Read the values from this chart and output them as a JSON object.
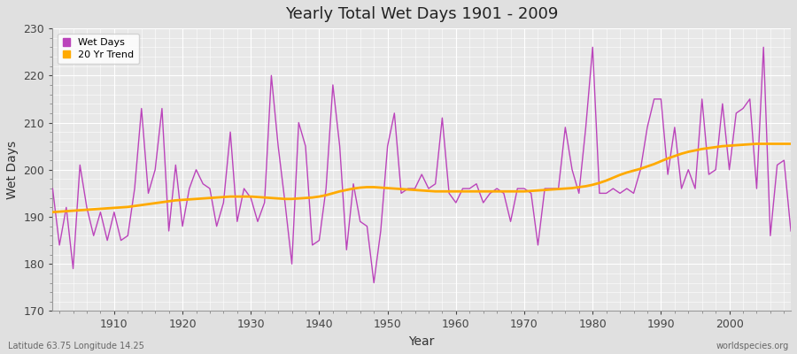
{
  "title": "Yearly Total Wet Days 1901 - 2009",
  "xlabel": "Year",
  "ylabel": "Wet Days",
  "subtitle": "Latitude 63.75 Longitude 14.25",
  "watermark": "worldspecies.org",
  "ylim": [
    170,
    230
  ],
  "xlim": [
    1901,
    2009
  ],
  "yticks": [
    170,
    180,
    190,
    200,
    210,
    220,
    230
  ],
  "wet_days_color": "#bb44bb",
  "trend_color": "#ffaa00",
  "fig_bg_color": "#e0e0e0",
  "plot_bg_color": "#e8e8e8",
  "years": [
    1901,
    1902,
    1903,
    1904,
    1905,
    1906,
    1907,
    1908,
    1909,
    1910,
    1911,
    1912,
    1913,
    1914,
    1915,
    1916,
    1917,
    1918,
    1919,
    1920,
    1921,
    1922,
    1923,
    1924,
    1925,
    1926,
    1927,
    1928,
    1929,
    1930,
    1931,
    1932,
    1933,
    1934,
    1935,
    1936,
    1937,
    1938,
    1939,
    1940,
    1941,
    1942,
    1943,
    1944,
    1945,
    1946,
    1947,
    1948,
    1949,
    1950,
    1951,
    1952,
    1953,
    1954,
    1955,
    1956,
    1957,
    1958,
    1959,
    1960,
    1961,
    1962,
    1963,
    1964,
    1965,
    1966,
    1967,
    1968,
    1969,
    1970,
    1971,
    1972,
    1973,
    1974,
    1975,
    1976,
    1977,
    1978,
    1979,
    1980,
    1981,
    1982,
    1983,
    1984,
    1985,
    1986,
    1987,
    1988,
    1989,
    1990,
    1991,
    1992,
    1993,
    1994,
    1995,
    1996,
    1997,
    1998,
    1999,
    2000,
    2001,
    2002,
    2003,
    2004,
    2005,
    2006,
    2007,
    2008,
    2009
  ],
  "wet_days": [
    196,
    184,
    192,
    179,
    201,
    192,
    186,
    191,
    185,
    191,
    185,
    186,
    196,
    213,
    195,
    200,
    213,
    187,
    201,
    188,
    196,
    200,
    197,
    196,
    188,
    193,
    208,
    189,
    196,
    194,
    189,
    193,
    220,
    205,
    193,
    180,
    210,
    205,
    184,
    185,
    196,
    218,
    205,
    183,
    197,
    189,
    188,
    176,
    187,
    205,
    212,
    195,
    196,
    196,
    199,
    196,
    197,
    211,
    195,
    193,
    196,
    196,
    197,
    193,
    195,
    196,
    195,
    189,
    196,
    196,
    195,
    184,
    196,
    196,
    196,
    209,
    200,
    195,
    209,
    226,
    195,
    195,
    196,
    195,
    196,
    195,
    200,
    209,
    215,
    215,
    199,
    209,
    196,
    200,
    196,
    215,
    199,
    200,
    214,
    200,
    212,
    213,
    215,
    196,
    226,
    186,
    201,
    202,
    187
  ],
  "trend": [
    191.0,
    191.1,
    191.2,
    191.3,
    191.4,
    191.5,
    191.6,
    191.7,
    191.8,
    191.9,
    192.0,
    192.1,
    192.3,
    192.5,
    192.7,
    192.9,
    193.1,
    193.3,
    193.5,
    193.6,
    193.7,
    193.8,
    193.9,
    194.0,
    194.1,
    194.2,
    194.3,
    194.3,
    194.3,
    194.3,
    194.2,
    194.1,
    194.0,
    193.9,
    193.8,
    193.8,
    193.9,
    194.0,
    194.1,
    194.3,
    194.6,
    195.0,
    195.4,
    195.7,
    196.0,
    196.2,
    196.3,
    196.3,
    196.2,
    196.1,
    196.0,
    195.9,
    195.8,
    195.7,
    195.6,
    195.5,
    195.4,
    195.4,
    195.4,
    195.4,
    195.4,
    195.4,
    195.4,
    195.4,
    195.4,
    195.4,
    195.4,
    195.4,
    195.4,
    195.4,
    195.5,
    195.6,
    195.7,
    195.8,
    195.9,
    196.0,
    196.1,
    196.3,
    196.5,
    196.8,
    197.2,
    197.7,
    198.3,
    198.9,
    199.4,
    199.8,
    200.2,
    200.7,
    201.2,
    201.8,
    202.4,
    202.9,
    203.4,
    203.8,
    204.1,
    204.4,
    204.6,
    204.8,
    205.0,
    205.1,
    205.2,
    205.3,
    205.4,
    205.5,
    205.5,
    205.5,
    205.5,
    205.5,
    205.5
  ]
}
